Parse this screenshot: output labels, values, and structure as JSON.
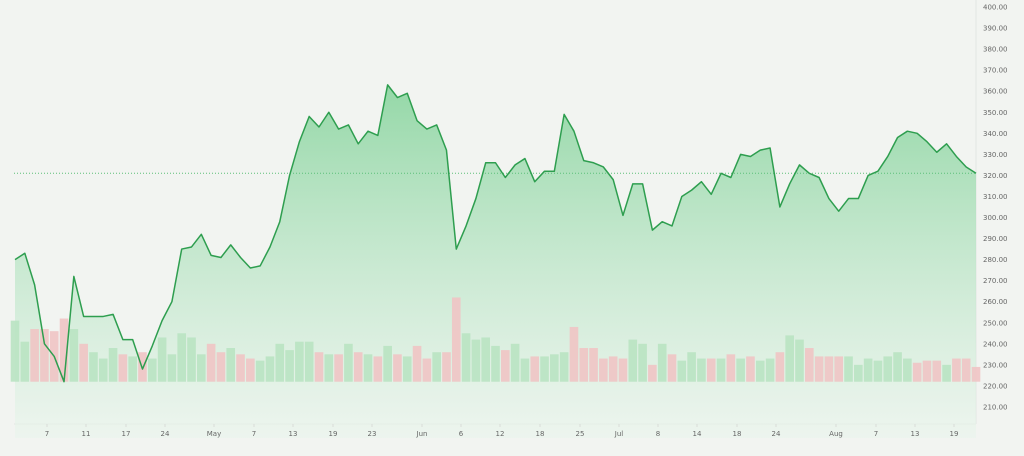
{
  "chart_data": {
    "type": "area",
    "title": "",
    "xlabel": "",
    "ylabel": "",
    "ylim": [
      200,
      400
    ],
    "y_ticks": [
      "400.00",
      "390.00",
      "380.00",
      "370.00",
      "360.00",
      "350.00",
      "340.00",
      "330.00",
      "320.00",
      "310.00",
      "300.00",
      "290.00",
      "280.00",
      "270.00",
      "260.00",
      "250.00",
      "240.00",
      "230.00",
      "220.00",
      "210.00"
    ],
    "x_ticks": [
      "7",
      "11",
      "17",
      "24",
      "May",
      "7",
      "13",
      "19",
      "23",
      "Jun",
      "6",
      "12",
      "18",
      "25",
      "Jul",
      "8",
      "14",
      "18",
      "24",
      "Aug",
      "7",
      "13",
      "19"
    ],
    "reference_line": 321,
    "grid": false,
    "legend": "none",
    "colors": {
      "line": "#2e9e4f",
      "fill": "#9fdcaf",
      "volume_up": "#b9e3c2",
      "volume_down": "#efc4c4",
      "reference": "#5cbf79",
      "axis_text": "#666666"
    },
    "price": [
      280,
      283,
      268,
      240,
      234,
      222,
      272,
      253,
      253,
      253,
      254,
      242,
      242,
      228,
      239,
      251,
      260,
      285,
      286,
      292,
      282,
      281,
      287,
      281,
      276,
      277,
      286,
      298,
      320,
      336,
      348,
      343,
      350,
      342,
      344,
      335,
      341,
      339,
      363,
      357,
      359,
      346,
      342,
      344,
      332,
      285,
      296,
      309,
      326,
      326,
      319,
      325,
      328,
      317,
      322,
      322,
      349,
      341,
      327,
      326,
      324,
      318,
      301,
      316,
      316,
      294,
      298,
      296,
      310,
      313,
      317,
      311,
      321,
      319,
      330,
      329,
      332,
      333,
      305,
      316,
      325,
      321,
      319,
      309,
      303,
      309,
      309,
      320,
      322,
      329,
      338,
      341,
      340,
      336,
      331,
      335,
      329,
      324,
      321
    ],
    "volume": [
      251,
      241,
      247,
      247,
      246,
      252,
      247,
      240,
      236,
      233,
      238,
      235,
      234,
      236,
      233,
      243,
      235,
      245,
      243,
      235,
      240,
      236,
      238,
      235,
      233,
      232,
      234,
      240,
      237,
      241,
      241,
      236,
      235,
      235,
      240,
      236,
      235,
      234,
      239,
      235,
      234,
      239,
      233,
      236,
      236,
      262,
      245,
      242,
      243,
      239,
      237,
      240,
      233,
      234,
      234,
      235,
      236,
      248,
      238,
      238,
      233,
      234,
      233,
      242,
      240,
      230,
      240,
      235,
      232,
      236,
      233,
      233,
      233,
      235,
      233,
      234,
      232,
      233,
      236,
      244,
      242,
      238,
      234,
      234,
      234,
      234,
      230,
      233,
      232,
      234,
      236,
      233,
      231,
      232,
      232,
      230,
      233,
      233,
      229
    ]
  }
}
